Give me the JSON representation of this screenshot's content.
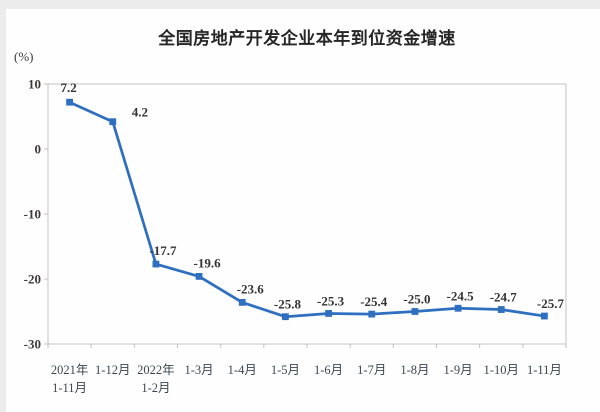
{
  "chart_data": {
    "type": "line",
    "title": "全国房地产开发企业本年到位资金增速",
    "ylabel": "(%)",
    "xlabel": "",
    "categories": [
      [
        "2021年",
        "1-11月"
      ],
      [
        "1-12月"
      ],
      [
        "2022年",
        "1-2月"
      ],
      [
        "1-3月"
      ],
      [
        "1-4月"
      ],
      [
        "1-5月"
      ],
      [
        "1-6月"
      ],
      [
        "1-7月"
      ],
      [
        "1-8月"
      ],
      [
        "1-9月"
      ],
      [
        "1-10月"
      ],
      [
        "1-11月"
      ]
    ],
    "values": [
      7.2,
      4.2,
      -17.7,
      -19.6,
      -23.6,
      -25.8,
      -25.3,
      -25.4,
      -25.0,
      -24.5,
      -24.7,
      -25.7
    ],
    "data_labels": [
      "7.2",
      "4.2",
      "-17.7",
      "-19.6",
      "-23.6",
      "-25.8",
      "-25.3",
      "-25.4",
      "-25.0",
      "-24.5",
      "-24.7",
      "-25.7"
    ],
    "ylim": [
      -30,
      10
    ],
    "yticks": [
      10,
      0,
      -10,
      -20,
      -30
    ],
    "ytick_labels": [
      "10",
      "0",
      "-10",
      "-20",
      "-30"
    ],
    "grid": false,
    "legend": "none",
    "marker": "square",
    "colors": {
      "line": "#2e6fc0",
      "marker": "#2e6fc0",
      "frame": "#c1c1c1",
      "title_text": "#262626",
      "axis_text": "#3e3a39",
      "category_text": "#3d4852",
      "data_label_text": "#333333",
      "page_strip": "#ececec"
    }
  }
}
